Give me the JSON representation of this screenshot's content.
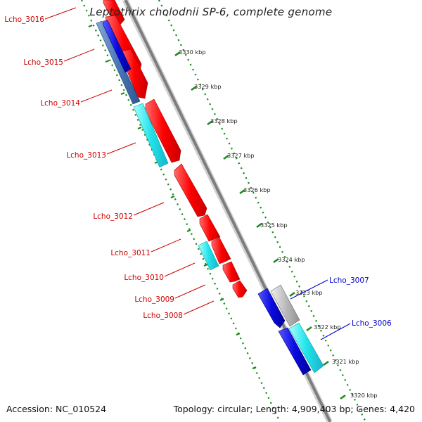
{
  "title": "Leptothrix cholodnii SP-6, complete genome",
  "accession": "Accession: NC_010524",
  "topology": "Topology: circular; Length: 4,909,403 bp; Genes: 4,420",
  "colors": {
    "forward_gene": "#ff0000",
    "reverse_gene_blue": "#1010dd",
    "reverse_gene_cyan": "#20e0e8",
    "reverse_gene_steel": "#4a78b8",
    "forward_gray": "#bcbcbc",
    "backbone": "#808080",
    "tick": "#1a8a1a",
    "red_label": "#cc0000",
    "blue_label": "#0000cc"
  },
  "scale_labels": [
    "3330 kbp",
    "3329 kbp",
    "3328 kbp",
    "3327 kbp",
    "3326 kbp",
    "3325 kbp",
    "3324 kbp",
    "3323 kbp",
    "3322 kbp",
    "3321 kbp",
    "3320 kbp"
  ],
  "gene_labels_left": [
    "Lcho_3016",
    "Lcho_3015",
    "Lcho_3014",
    "Lcho_3013",
    "Lcho_3012",
    "Lcho_3011",
    "Lcho_3010",
    "Lcho_3009",
    "Lcho_3008"
  ],
  "gene_labels_right": [
    "Lcho_3007",
    "Lcho_3006"
  ]
}
